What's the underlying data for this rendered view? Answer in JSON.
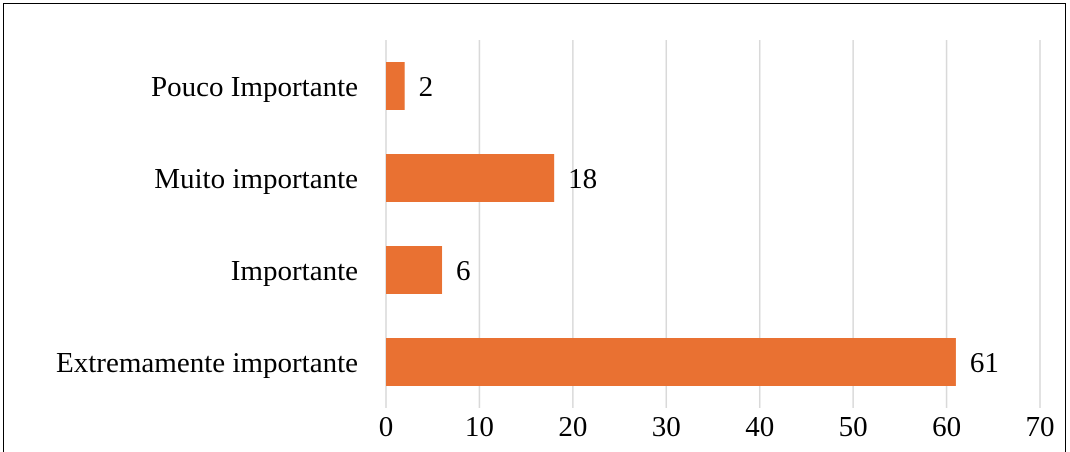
{
  "chart_data": {
    "type": "bar",
    "orientation": "horizontal",
    "categories": [
      "Pouco Importante",
      "Muito importante",
      "Importante",
      "Extremamente importante"
    ],
    "values": [
      2,
      18,
      6,
      61
    ],
    "data_labels": [
      "2",
      "18",
      "6",
      "61"
    ],
    "xlim": [
      0,
      70
    ],
    "x_ticks": [
      0,
      10,
      20,
      30,
      40,
      50,
      60,
      70
    ],
    "x_tick_labels": [
      "0",
      "10",
      "20",
      "30",
      "40",
      "50",
      "60",
      "70"
    ],
    "grid": "vertical",
    "legend": "none",
    "title": "",
    "xlabel": "",
    "ylabel": "",
    "bar_color": "#E97132",
    "gridline_color": "#D9D9D9"
  }
}
